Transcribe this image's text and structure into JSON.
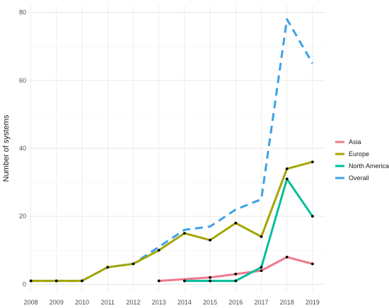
{
  "chart_data": {
    "type": "line",
    "title": "",
    "xlabel": "",
    "ylabel": "Number of systems",
    "x": [
      2008,
      2009,
      2010,
      2011,
      2012,
      2013,
      2014,
      2015,
      2016,
      2017,
      2018,
      2019
    ],
    "x_tick_labels": [
      "2008",
      "2009",
      "2010",
      "2011",
      "2012",
      "2013",
      "2014",
      "2015",
      "2016",
      "2017",
      "2018",
      "2019"
    ],
    "xlim": [
      2007.9,
      2019.5
    ],
    "ylim": [
      -2,
      82
    ],
    "y_ticks": [
      0,
      20,
      40,
      60,
      80
    ],
    "y_tick_labels": [
      "0",
      "20",
      "40",
      "60",
      "80"
    ],
    "grid": true,
    "legend_position": "right",
    "series": [
      {
        "name": "Asia",
        "color": "#F0788C",
        "dashed": false,
        "points": [
          [
            2013,
            1
          ],
          [
            2015,
            2
          ],
          [
            2016,
            3
          ],
          [
            2017,
            4
          ],
          [
            2018,
            8
          ],
          [
            2019,
            6
          ]
        ],
        "markers": true
      },
      {
        "name": "Europe",
        "color": "#A3A500",
        "dashed": false,
        "points": [
          [
            2008,
            1
          ],
          [
            2009,
            1
          ],
          [
            2010,
            1
          ],
          [
            2011,
            5
          ],
          [
            2012,
            6
          ],
          [
            2013,
            10
          ],
          [
            2014,
            15
          ],
          [
            2015,
            13
          ],
          [
            2016,
            18
          ],
          [
            2017,
            14
          ],
          [
            2018,
            34
          ],
          [
            2019,
            36
          ]
        ],
        "markers": true
      },
      {
        "name": "North America",
        "color": "#00BF9A",
        "dashed": false,
        "points": [
          [
            2014,
            1
          ],
          [
            2015,
            1
          ],
          [
            2016,
            1
          ],
          [
            2017,
            5
          ],
          [
            2018,
            31
          ],
          [
            2019,
            20
          ]
        ],
        "markers": true
      },
      {
        "name": "Overall",
        "color": "#3DA1E6",
        "dashed": true,
        "points": [
          [
            2008,
            1
          ],
          [
            2009,
            1
          ],
          [
            2010,
            1
          ],
          [
            2011,
            5
          ],
          [
            2012,
            6
          ],
          [
            2013,
            11
          ],
          [
            2014,
            16
          ],
          [
            2015,
            17
          ],
          [
            2016,
            22
          ],
          [
            2017,
            25
          ],
          [
            2018,
            78
          ],
          [
            2019,
            65
          ]
        ],
        "markers": false
      }
    ]
  }
}
